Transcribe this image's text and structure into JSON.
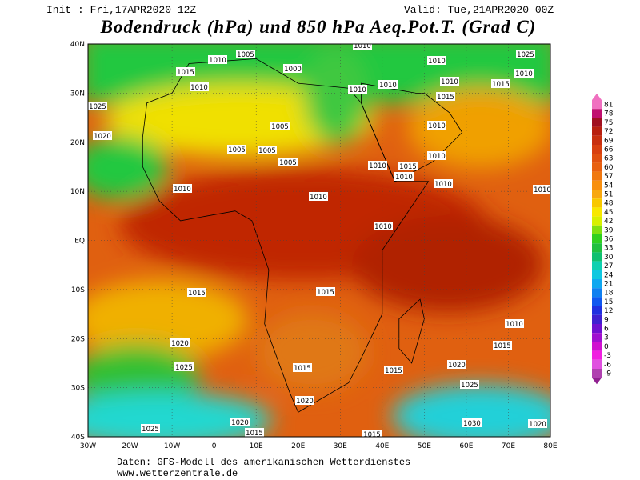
{
  "header": {
    "init": "Init : Fri,17APR2020 12Z",
    "valid": "Valid: Tue,21APR2020 00Z",
    "title": "Bodendruck (hPa) und 850 hPa Aeq.Pot.T. (Grad C)"
  },
  "lon_labels": [
    "30W",
    "20W",
    "10W",
    "0",
    "10E",
    "20E",
    "30E",
    "40E",
    "50E",
    "60E",
    "70E",
    "80E"
  ],
  "lat_labels": [
    "40N",
    "30N",
    "20N",
    "10N",
    "EQ",
    "10S",
    "20S",
    "30S",
    "40S"
  ],
  "isobar_labels": [
    "1010",
    "1005",
    "1000",
    "1010",
    "1010",
    "1025",
    "1015",
    "1010",
    "1010",
    "1010",
    "1010",
    "1015",
    "1010",
    "1025",
    "1015",
    "1005",
    "1010",
    "1020",
    "1005",
    "1005",
    "1005",
    "1010",
    "1015",
    "1010",
    "1010",
    "1010",
    "1010",
    "1010",
    "1010",
    "1010",
    "1015",
    "1015",
    "1010",
    "1020",
    "1015",
    "1025",
    "1015",
    "1015",
    "1020",
    "1025",
    "1020",
    "1025",
    "1020",
    "1015",
    "1030",
    "1020",
    "1015"
  ],
  "colorbar": [
    81,
    78,
    75,
    72,
    69,
    66,
    63,
    60,
    57,
    54,
    51,
    48,
    45,
    42,
    39,
    36,
    33,
    30,
    27,
    24,
    21,
    18,
    15,
    12,
    9,
    6,
    3,
    0,
    -3,
    -6,
    -9
  ],
  "footer": {
    "source": "Daten: GFS-Modell des amerikanischen Wetterdienstes",
    "site": "www.wetterzentrale.de"
  }
}
